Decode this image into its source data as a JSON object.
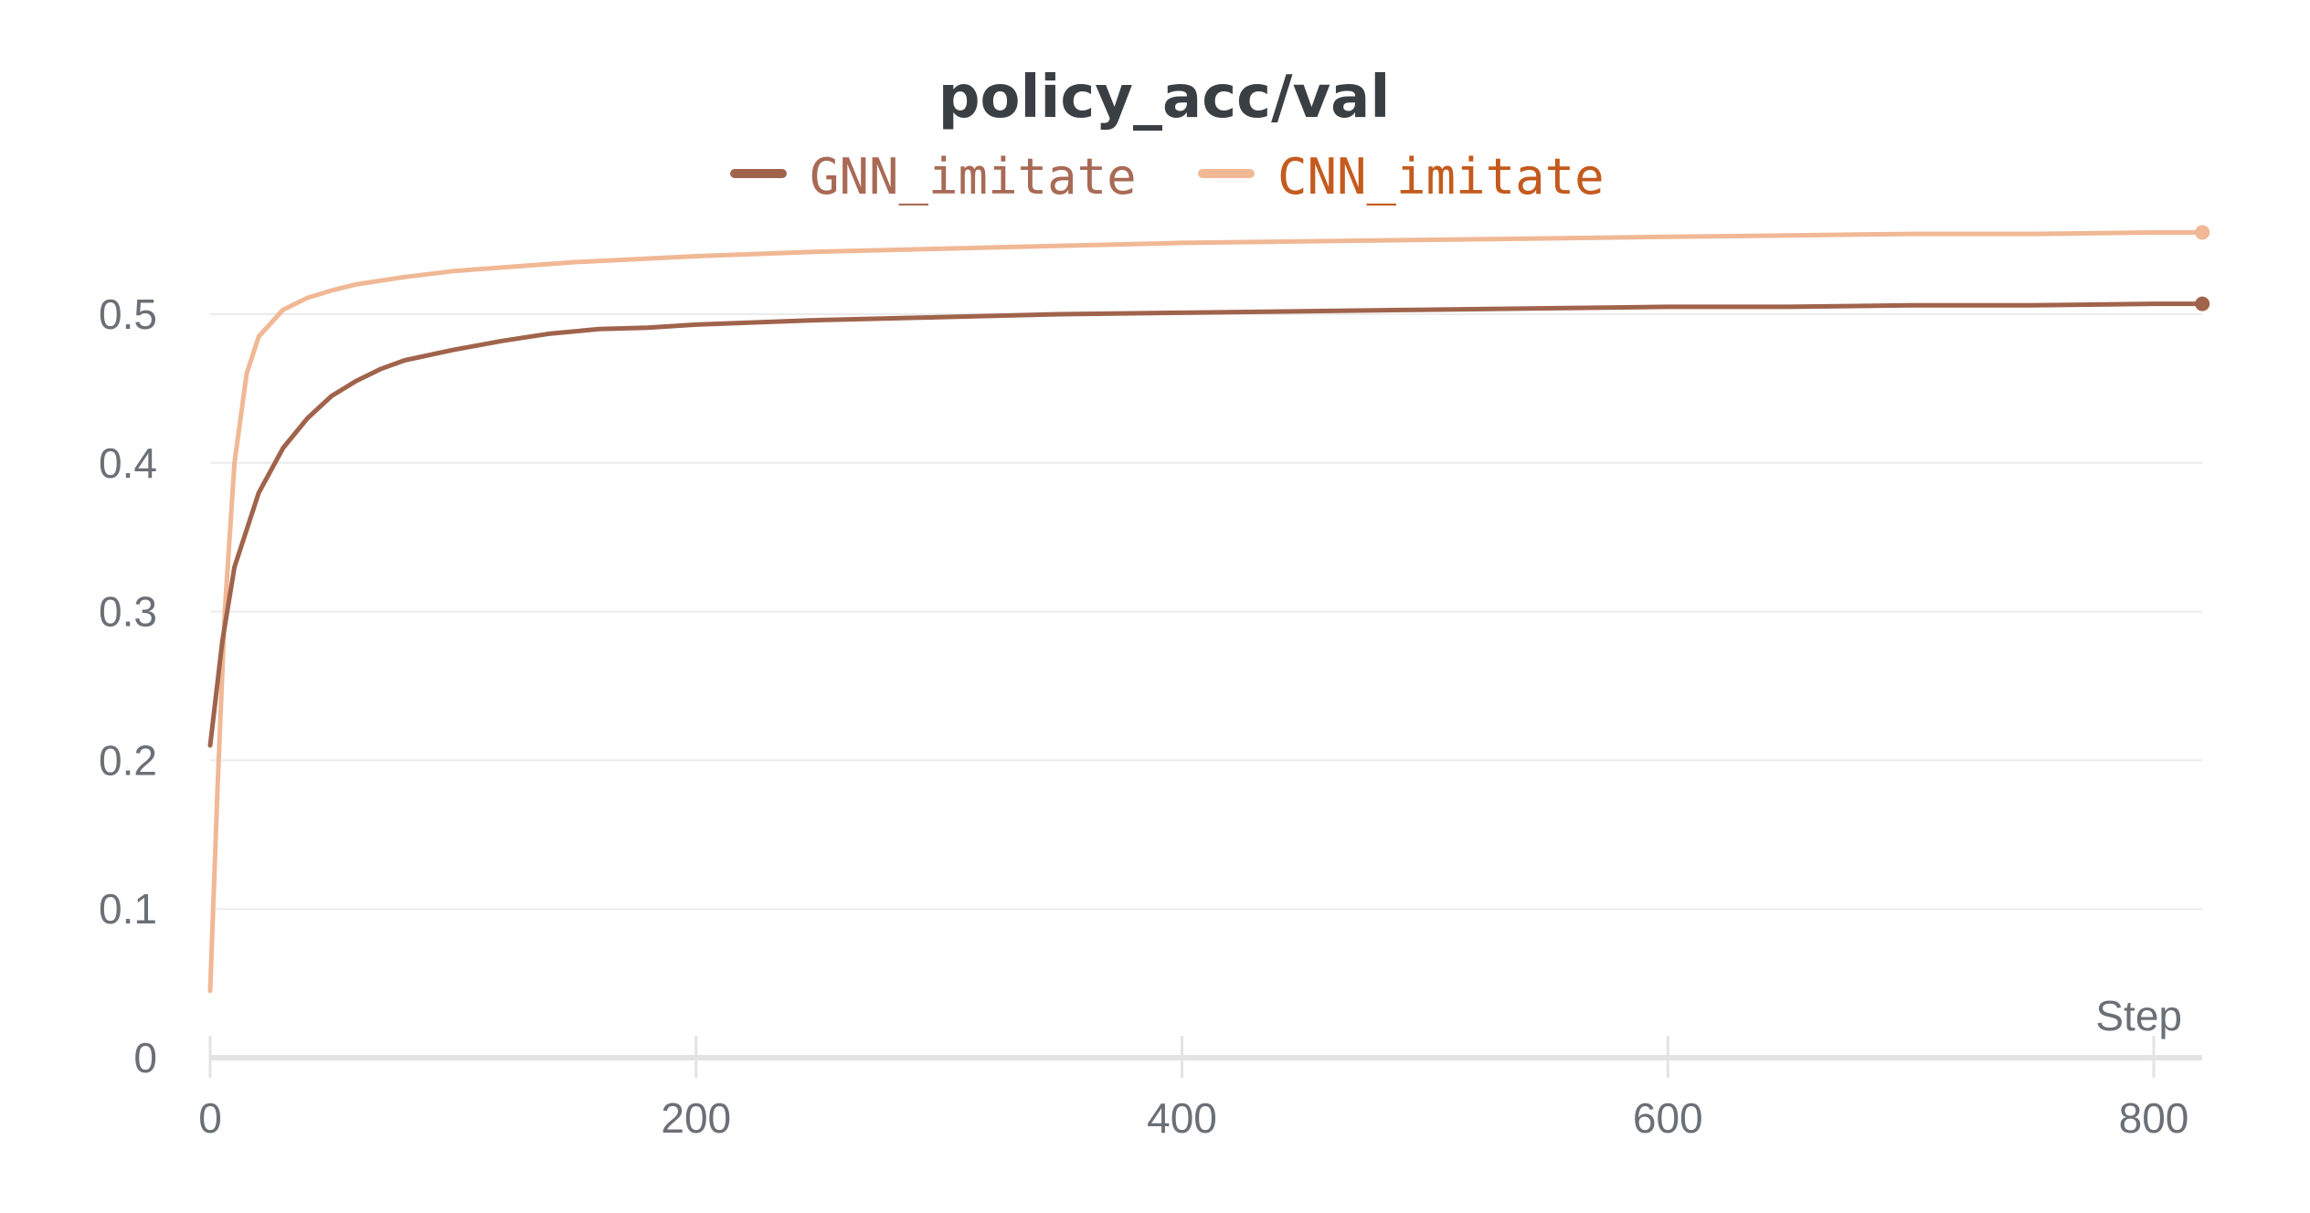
{
  "chart_data": {
    "type": "line",
    "title": "policy_acc/val",
    "xlabel": "Step",
    "ylabel": "",
    "xlim": [
      0,
      820
    ],
    "ylim": [
      0,
      0.56
    ],
    "xticks": [
      0,
      200,
      400,
      600,
      800
    ],
    "xtick_labels": [
      "0",
      "200",
      "400",
      "600",
      "800"
    ],
    "yticks": [
      0,
      0.1,
      0.2,
      0.3,
      0.4,
      0.5
    ],
    "ytick_labels": [
      "0",
      "0.1",
      "0.2",
      "0.3",
      "0.4",
      "0.5"
    ],
    "grid": true,
    "legend_position": "top-center",
    "series": [
      {
        "name": "GNN_imitate",
        "color": "#a0634c",
        "x": [
          0,
          5,
          10,
          20,
          30,
          40,
          50,
          60,
          70,
          80,
          100,
          120,
          140,
          160,
          180,
          200,
          250,
          300,
          350,
          400,
          450,
          500,
          550,
          600,
          650,
          700,
          750,
          800,
          820
        ],
        "y": [
          0.21,
          0.28,
          0.33,
          0.38,
          0.41,
          0.43,
          0.445,
          0.455,
          0.463,
          0.469,
          0.476,
          0.482,
          0.487,
          0.49,
          0.491,
          0.493,
          0.496,
          0.498,
          0.5,
          0.501,
          0.502,
          0.503,
          0.504,
          0.505,
          0.505,
          0.506,
          0.506,
          0.507,
          0.507
        ]
      },
      {
        "name": "CNN_imitate",
        "color": "#f0b895",
        "x": [
          0,
          3,
          6,
          10,
          15,
          20,
          30,
          40,
          50,
          60,
          80,
          100,
          150,
          200,
          250,
          300,
          350,
          400,
          450,
          500,
          550,
          600,
          650,
          700,
          750,
          800,
          820
        ],
        "y": [
          0.045,
          0.18,
          0.3,
          0.4,
          0.46,
          0.485,
          0.503,
          0.511,
          0.516,
          0.52,
          0.525,
          0.529,
          0.535,
          0.539,
          0.542,
          0.544,
          0.546,
          0.548,
          0.549,
          0.55,
          0.551,
          0.552,
          0.553,
          0.554,
          0.554,
          0.555,
          0.555
        ]
      }
    ]
  }
}
